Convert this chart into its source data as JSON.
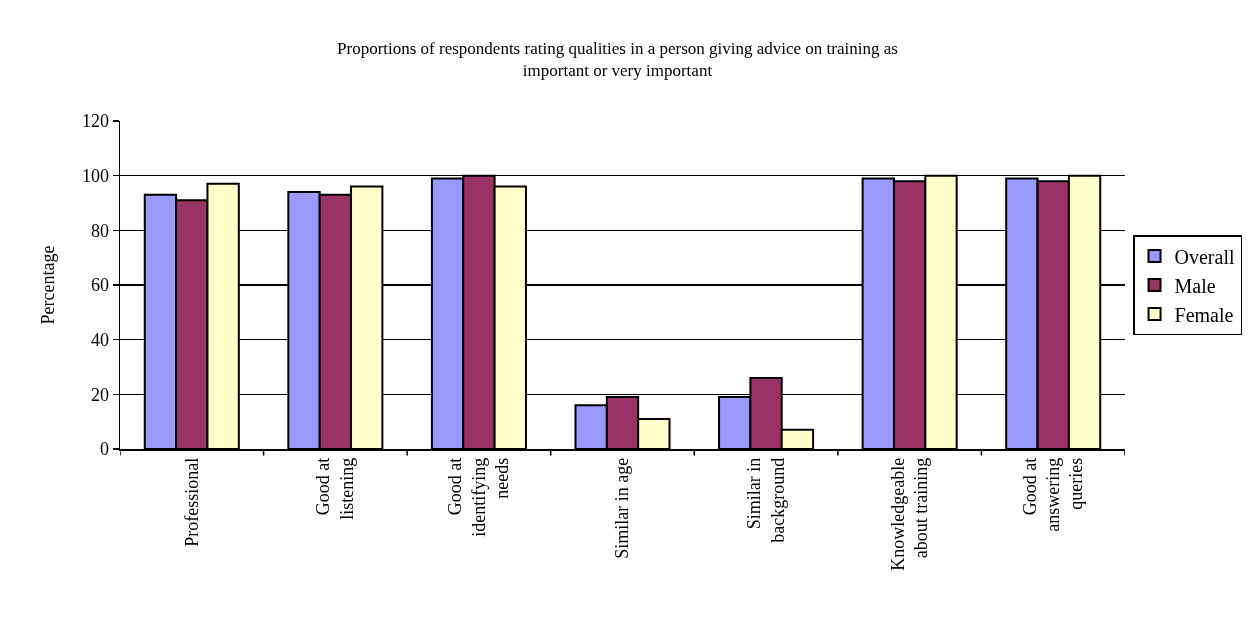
{
  "chart_data": {
    "type": "bar",
    "title": "Proportions of respondents rating qualities in a person giving advice on training as important or very important",
    "ylabel": "Percentage",
    "categories": [
      "Professional",
      "Good at listening",
      "Good at identifying needs",
      "Similar in age",
      "Similar in background",
      "Knowledgeable about training",
      "Good at answering queries"
    ],
    "series": [
      {
        "name": "Overall",
        "color": "#9999ff",
        "values": [
          93,
          94,
          99,
          16,
          19,
          99,
          99
        ]
      },
      {
        "name": "Male",
        "color": "#993366",
        "values": [
          91,
          93,
          100,
          19,
          26,
          98,
          98
        ]
      },
      {
        "name": "Female",
        "color": "#ffffcc",
        "values": [
          97,
          96,
          96,
          11,
          7,
          100,
          100
        ]
      }
    ],
    "ylim": [
      0,
      120
    ],
    "yticks": [
      0,
      20,
      40,
      60,
      80,
      100,
      120
    ],
    "grid": "y",
    "legend": "right"
  }
}
